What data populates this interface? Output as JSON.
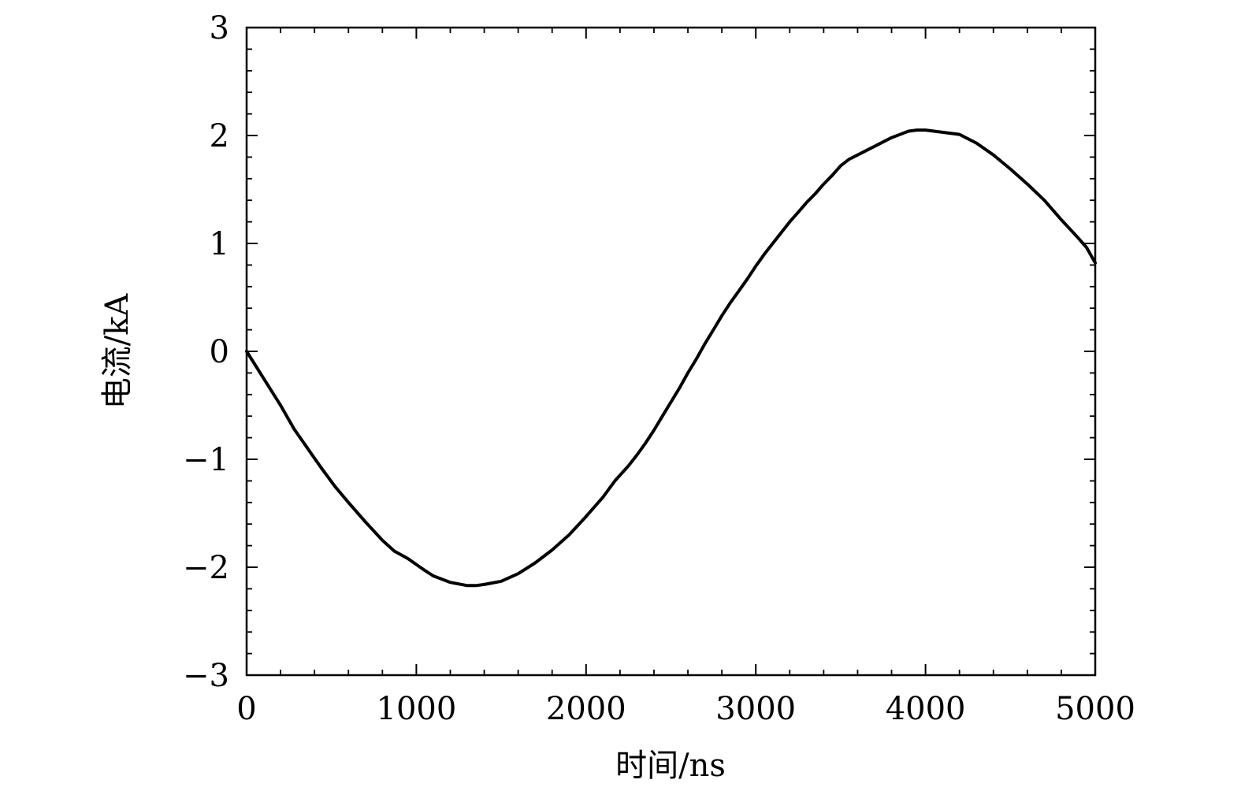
{
  "chart_data": {
    "type": "line",
    "title": "",
    "xlabel": "时间/ns",
    "ylabel": "电流/kA",
    "xlim": [
      0,
      5000
    ],
    "ylim": [
      -3,
      3
    ],
    "x_ticks": [
      0,
      1000,
      2000,
      3000,
      4000,
      5000
    ],
    "x_tick_labels": [
      "0",
      "1000",
      "2000",
      "3000",
      "4000",
      "5000"
    ],
    "y_ticks": [
      3,
      2,
      1,
      0,
      -1,
      -2,
      -3
    ],
    "y_tick_labels": [
      "3",
      "2",
      "1",
      "0",
      "−1",
      "−2",
      "−3"
    ],
    "x_minor_step": 200,
    "y_minor_step": 0.2,
    "grid": false,
    "legend": "none",
    "line_color": "#000000",
    "series": [
      {
        "x": [
          0,
          60,
          120,
          200,
          280,
          360,
          440,
          520,
          600,
          700,
          800,
          870,
          950,
          1050,
          1100,
          1200,
          1300,
          1350,
          1400,
          1500,
          1600,
          1700,
          1800,
          1900,
          2000,
          2100,
          2170,
          2250,
          2300,
          2350,
          2400,
          2450,
          2500,
          2550,
          2600,
          2650,
          2700,
          2750,
          2800,
          2850,
          2900,
          2950,
          3000,
          3050,
          3100,
          3150,
          3200,
          3250,
          3300,
          3350,
          3400,
          3450,
          3500,
          3550,
          3600,
          3700,
          3800,
          3900,
          3950,
          4000,
          4050,
          4100,
          4200,
          4300,
          4400,
          4500,
          4600,
          4700,
          4800,
          4900,
          4950,
          5000
        ],
        "y": [
          0,
          -0.15,
          -0.3,
          -0.5,
          -0.72,
          -0.9,
          -1.08,
          -1.25,
          -1.4,
          -1.58,
          -1.75,
          -1.85,
          -1.92,
          -2.03,
          -2.08,
          -2.14,
          -2.17,
          -2.17,
          -2.16,
          -2.13,
          -2.06,
          -1.96,
          -1.84,
          -1.7,
          -1.53,
          -1.35,
          -1.2,
          -1.06,
          -0.96,
          -0.85,
          -0.73,
          -0.6,
          -0.47,
          -0.34,
          -0.2,
          -0.07,
          0.07,
          0.2,
          0.33,
          0.45,
          0.56,
          0.67,
          0.79,
          0.9,
          1.0,
          1.1,
          1.2,
          1.29,
          1.38,
          1.46,
          1.55,
          1.63,
          1.72,
          1.78,
          1.82,
          1.9,
          1.98,
          2.04,
          2.05,
          2.05,
          2.04,
          2.03,
          2.01,
          1.93,
          1.82,
          1.69,
          1.55,
          1.4,
          1.22,
          1.05,
          0.96,
          0.82
        ]
      }
    ]
  }
}
